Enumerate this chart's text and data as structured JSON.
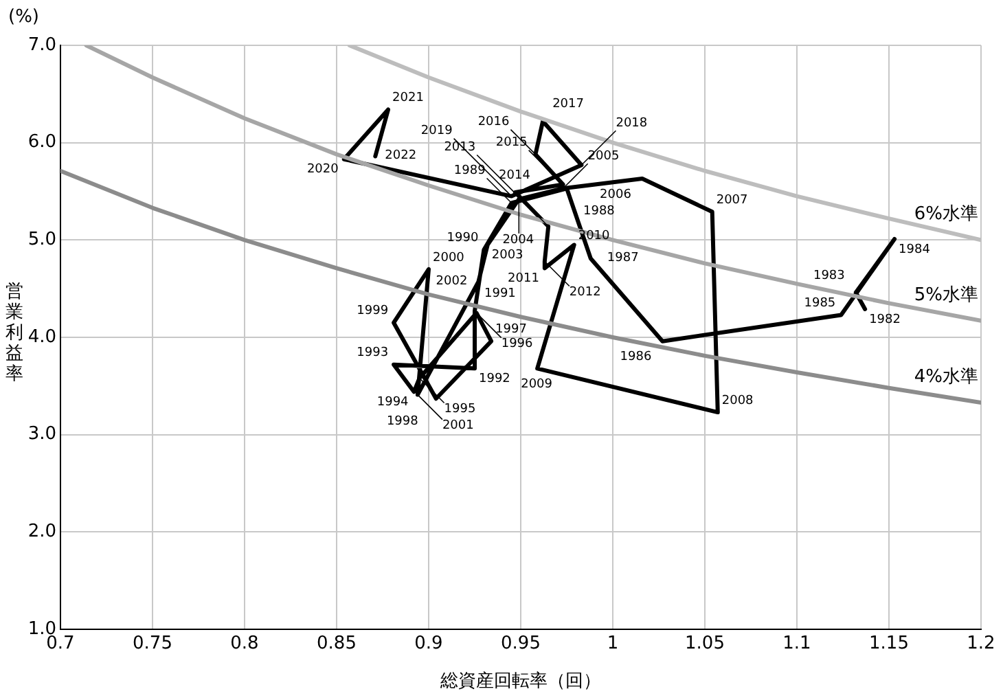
{
  "chart_data": {
    "type": "line",
    "xlabel": "総資産回転率（回）",
    "ylabel": "営業利益率",
    "xlim": [
      0.7,
      1.2
    ],
    "xticks": [
      0.7,
      0.75,
      0.8,
      0.85,
      0.9,
      0.95,
      {
        "value": 1,
        "label": "1"
      },
      1.05,
      1.1,
      1.15,
      1.2
    ],
    "ylim": [
      1,
      7
    ],
    "yticks": [
      {
        "value": 1,
        "label": "1.0"
      },
      {
        "value": 2,
        "label": "2.0"
      },
      {
        "value": 3,
        "label": "3.0"
      },
      {
        "value": 4,
        "label": "4.0"
      },
      {
        "value": 5,
        "label": "5.0"
      },
      {
        "value": 6,
        "label": "6.0"
      },
      {
        "value": 7,
        "label": "7.0"
      }
    ],
    "grid": true,
    "legend": false,
    "marker": "none",
    "line_style": "solid",
    "series": [
      {
        "name": "6%水準",
        "color": "#bdbdbd",
        "x": [
          0.857,
          0.9,
          0.95,
          1,
          1.05,
          1.1,
          1.15,
          1.2
        ],
        "values": [
          7.0,
          6.67,
          6.32,
          6.0,
          5.71,
          5.45,
          5.22,
          5.0
        ]
      },
      {
        "name": "5%水準",
        "color": "#a6a6a6",
        "x": [
          0.714,
          0.75,
          0.8,
          0.85,
          0.9,
          0.95,
          1,
          1.05,
          1.1,
          1.15,
          1.2
        ],
        "values": [
          7.0,
          6.67,
          6.25,
          5.88,
          5.56,
          5.26,
          5.0,
          4.76,
          4.55,
          4.35,
          4.17
        ]
      },
      {
        "name": "4%水準",
        "color": "#8c8c8c",
        "x": [
          0.7,
          0.75,
          0.8,
          0.85,
          0.9,
          0.95,
          1,
          1.05,
          1.1,
          1.15,
          1.2
        ],
        "values": [
          5.71,
          5.33,
          5.0,
          4.71,
          4.44,
          4.21,
          4.0,
          3.81,
          3.64,
          3.48,
          3.33
        ]
      },
      {
        "color": "#000000",
        "x": [
          1.137,
          1.132,
          1.153,
          1.124,
          1.027,
          0.988,
          0.975,
          0.945,
          0.93,
          0.925,
          0.925,
          0.881,
          0.892,
          0.895,
          0.926,
          0.934,
          0.904,
          0.881,
          0.9,
          0.894,
          0.927,
          0.932,
          0.949,
          0.973,
          1.016,
          1.054,
          1.057,
          0.959,
          0.979,
          0.963,
          0.963,
          0.965,
          0.947,
          0.973,
          0.958,
          0.962,
          0.983,
          0.945,
          0.854,
          0.878,
          0.871
        ],
        "values": [
          4.29,
          4.46,
          5.01,
          4.23,
          3.96,
          4.81,
          5.53,
          5.38,
          4.9,
          4.27,
          3.68,
          3.72,
          3.44,
          3.58,
          4.25,
          3.96,
          3.37,
          4.15,
          4.7,
          3.41,
          4.57,
          4.95,
          5.42,
          5.53,
          5.63,
          5.29,
          3.23,
          3.68,
          4.95,
          4.71,
          4.78,
          5.14,
          5.49,
          5.57,
          5.88,
          6.22,
          5.77,
          5.45,
          5.83,
          6.34,
          5.86
        ]
      }
    ],
    "annotations": [
      "(%)",
      {
        "text": "1982",
        "x": 1.137,
        "y": 4.29
      },
      {
        "text": "1983",
        "x": 1.132,
        "y": 4.46
      },
      {
        "text": "1984",
        "x": 1.153,
        "y": 5.01
      },
      {
        "text": "1985",
        "x": 1.124,
        "y": 4.23
      },
      {
        "text": "1986",
        "x": 1.027,
        "y": 3.96
      },
      {
        "text": "1987",
        "x": 0.988,
        "y": 4.81
      },
      {
        "text": "1988",
        "x": 0.975,
        "y": 5.53
      },
      {
        "text": "1989",
        "x": 0.945,
        "y": 5.38
      },
      {
        "text": "1990",
        "x": 0.93,
        "y": 4.9
      },
      {
        "text": "1991",
        "x": 0.925,
        "y": 4.27
      },
      {
        "text": "1992",
        "x": 0.925,
        "y": 3.68
      },
      {
        "text": "1993",
        "x": 0.881,
        "y": 3.72
      },
      {
        "text": "1994",
        "x": 0.892,
        "y": 3.44
      },
      {
        "text": "1995",
        "x": 0.895,
        "y": 3.58
      },
      {
        "text": "1996",
        "x": 0.926,
        "y": 4.25
      },
      {
        "text": "1997",
        "x": 0.934,
        "y": 3.96
      },
      {
        "text": "1998",
        "x": 0.904,
        "y": 3.37
      },
      {
        "text": "1999",
        "x": 0.881,
        "y": 4.15
      },
      {
        "text": "2000",
        "x": 0.9,
        "y": 4.7
      },
      {
        "text": "2001",
        "x": 0.894,
        "y": 3.41
      },
      {
        "text": "2002",
        "x": 0.927,
        "y": 4.57
      },
      {
        "text": "2003",
        "x": 0.932,
        "y": 4.95
      },
      {
        "text": "2004",
        "x": 0.949,
        "y": 5.42
      },
      {
        "text": "2005",
        "x": 0.973,
        "y": 5.53
      },
      {
        "text": "2006",
        "x": 1.016,
        "y": 5.63
      },
      {
        "text": "2007",
        "x": 1.054,
        "y": 5.29
      },
      {
        "text": "2008",
        "x": 1.057,
        "y": 3.23
      },
      {
        "text": "2009",
        "x": 0.959,
        "y": 3.68
      },
      {
        "text": "2010",
        "x": 0.979,
        "y": 4.95
      },
      {
        "text": "2011",
        "x": 0.963,
        "y": 4.71
      },
      {
        "text": "2012",
        "x": 0.963,
        "y": 4.78
      },
      {
        "text": "2013",
        "x": 0.965,
        "y": 5.14
      },
      {
        "text": "2014",
        "x": 0.947,
        "y": 5.49
      },
      {
        "text": "2015",
        "x": 0.973,
        "y": 5.57
      },
      {
        "text": "2016",
        "x": 0.958,
        "y": 5.88
      },
      {
        "text": "2017",
        "x": 0.962,
        "y": 6.22
      },
      {
        "text": "2018",
        "x": 0.983,
        "y": 5.77
      },
      {
        "text": "2019",
        "x": 0.945,
        "y": 5.45
      },
      {
        "text": "2020",
        "x": 0.854,
        "y": 5.83
      },
      {
        "text": "2021",
        "x": 0.878,
        "y": 6.34
      },
      {
        "text": "2022",
        "x": 0.871,
        "y": 5.86
      }
    ]
  }
}
